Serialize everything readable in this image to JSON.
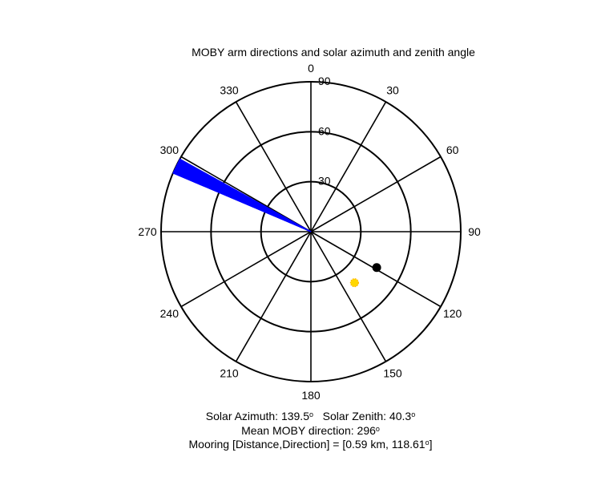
{
  "chart_data": {
    "type": "polar",
    "title": "MOBY arm directions and solar azimuth and zenith angle",
    "angle_convention": "compass, clockwise from north",
    "radial_range": [
      0,
      90
    ],
    "radial_ticks": [
      30,
      60,
      90
    ],
    "radial_tick_labels": [
      "30",
      "60",
      "90"
    ],
    "angular_ticks": [
      0,
      30,
      60,
      90,
      120,
      150,
      180,
      210,
      240,
      270,
      300,
      330
    ],
    "angular_tick_labels": [
      "0",
      "30",
      "60",
      "90",
      "120",
      "150",
      "180",
      "210",
      "240",
      "270",
      "300",
      "330"
    ],
    "grid": true,
    "series": [
      {
        "kind": "direction-fan",
        "color": "#0000ff",
        "directions_deg_min": 293,
        "directions_deg_max": 299,
        "count": 25,
        "radius": 90
      },
      {
        "kind": "mooring-point",
        "color": "#000000",
        "direction_deg": 118.61,
        "radius": 45
      },
      {
        "kind": "sun",
        "color": "#ffd700",
        "azimuth_deg": 139.5,
        "zenith_deg": 40.3
      }
    ],
    "annotations": {
      "solar_azimuth_label": "Solar Azimuth: 139.5",
      "solar_zenith_label": "Solar Zenith: 40.3",
      "mean_direction_label": "Mean MOBY direction: 296",
      "mooring_label_prefix": "Mooring [Distance,Direction] = [0.59 km, 118.61",
      "mooring_label_suffix": "]",
      "degree_symbol": "o"
    }
  }
}
